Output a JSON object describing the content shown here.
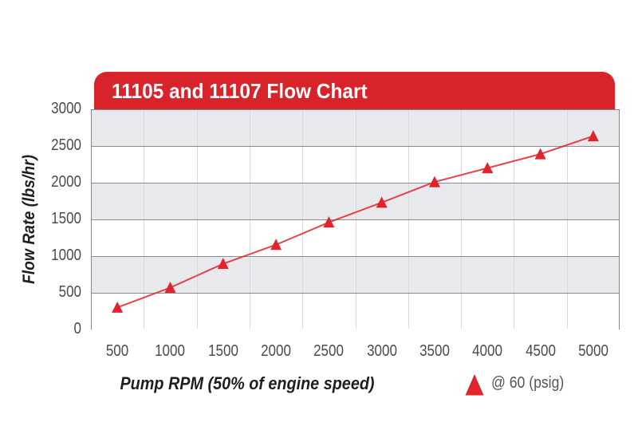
{
  "header": {
    "title": "11105 and 11107 Flow Chart"
  },
  "colors": {
    "banner_bg": "#d8232a",
    "banner_text": "#ffffff",
    "series_red": "#e2232b",
    "band_gray": "#e8e9ec",
    "band_white": "#ffffff",
    "hgrid": "#8a8c8f",
    "vgrid": "#d9dade",
    "tick_text": "#4a4b4d",
    "legend_text": "#55565a",
    "axis_title_text": "#1f1f21"
  },
  "chart_data": {
    "type": "line",
    "title": "11105 and 11107 Flow Chart",
    "xlabel": "Pump RPM (50% of engine speed)",
    "ylabel": "Flow Rate (lbs/hr)",
    "x": [
      500,
      1000,
      1500,
      2000,
      2500,
      3000,
      3500,
      4000,
      4500,
      5000
    ],
    "x_tick_labels": [
      "500",
      "1000",
      "1500",
      "2000",
      "2500",
      "3000",
      "3500",
      "4000",
      "4500",
      "5000"
    ],
    "y_tick_labels": [
      "0",
      "500",
      "1000",
      "1500",
      "2000",
      "2500",
      "3000"
    ],
    "series": [
      {
        "name": "@ 60 (psig)",
        "marker": "triangle",
        "color": "#e2232b",
        "values": [
          300,
          570,
          895,
          1155,
          1460,
          1730,
          2010,
          2200,
          2390,
          2635
        ]
      }
    ],
    "xlim": [
      250,
      5250
    ],
    "ylim": [
      0,
      3000
    ],
    "y_tick_step": 500,
    "grid": {
      "horizontal": true,
      "vertical": "between-ticks",
      "band_fill": [
        "#e8e9ec",
        "#ffffff"
      ]
    },
    "legend": {
      "label": "@ 60 (psig)",
      "marker": "triangle",
      "position": "below-chart-right"
    }
  }
}
